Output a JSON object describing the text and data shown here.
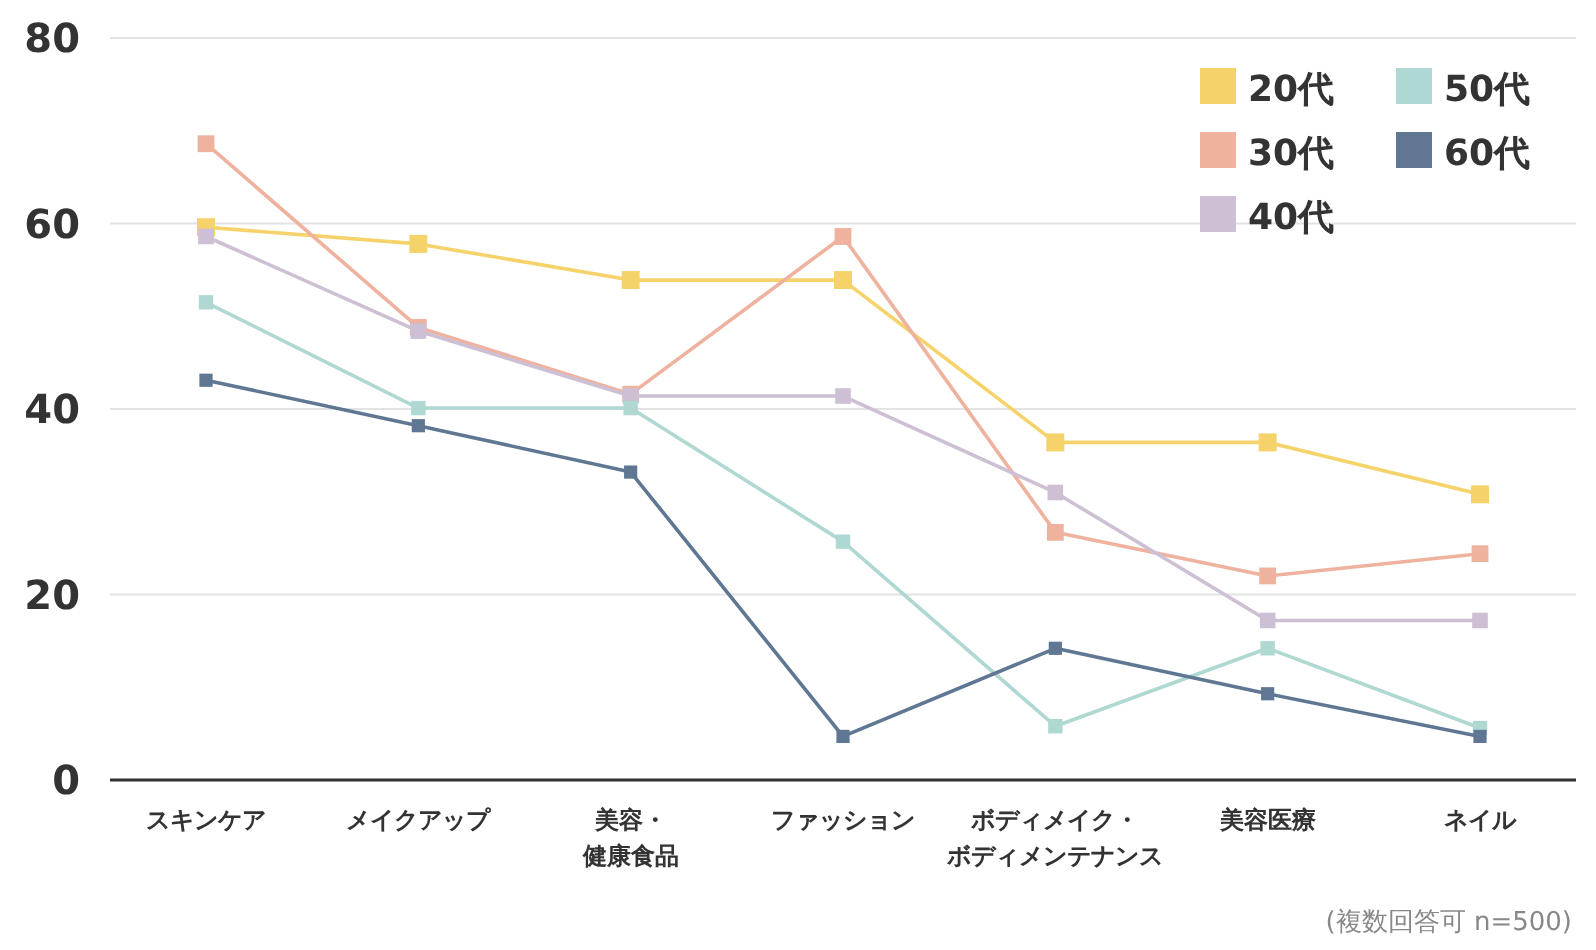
{
  "chart_data": {
    "type": "line",
    "categories": [
      "スキンケア",
      "メイクアップ",
      "美容・健康食品",
      "ファッション",
      "ボディメイク・ボディメンテナンス",
      "美容医療",
      "ネイル"
    ],
    "series": [
      {
        "name": "20代",
        "color": "#f6d26a",
        "values": [
          59.6,
          57.8,
          53.9,
          53.9,
          36.4,
          36.4,
          30.8
        ]
      },
      {
        "name": "30代",
        "color": "#eeb29f",
        "values": [
          68.6,
          48.8,
          41.6,
          58.6,
          26.7,
          22,
          24.4
        ]
      },
      {
        "name": "40代",
        "color": "#cdbfd4",
        "values": [
          58.6,
          48.4,
          41.4,
          41.4,
          31,
          17.2,
          17.2
        ]
      },
      {
        "name": "50代",
        "color": "#b0d8d3",
        "values": [
          51.5,
          40.1,
          40.1,
          25.7,
          5.8,
          14.2,
          5.6
        ]
      },
      {
        "name": "60代",
        "color": "#5f7792",
        "values": [
          43.1,
          38.2,
          33.2,
          4.7,
          14.2,
          9.3,
          4.7
        ]
      }
    ],
    "ylim": [
      0,
      80
    ],
    "yticks": [
      0,
      20,
      40,
      60,
      80
    ],
    "grid": "y",
    "legend": "top right",
    "marker": "square",
    "line_style": "solid",
    "annotations": [
      "(複数回答可 n=500)"
    ]
  }
}
